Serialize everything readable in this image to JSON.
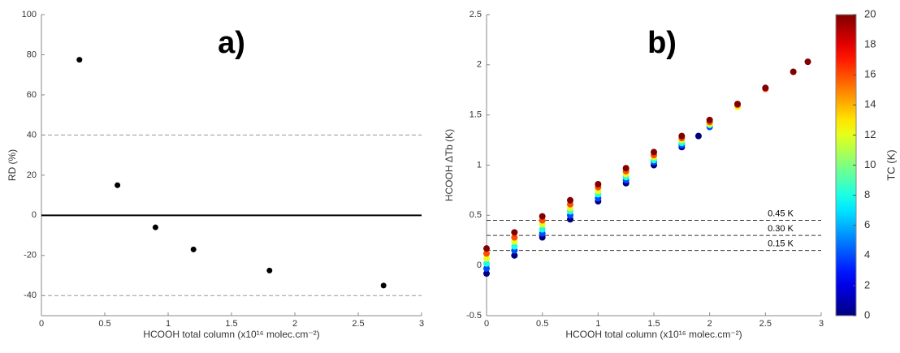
{
  "chart_data": [
    {
      "type": "scatter",
      "title": "a)",
      "ylabel": "RD (%)",
      "xlabel": "HCOOH total column (x10¹⁶ molec.cm⁻²)",
      "x": [
        0.3,
        0.6,
        0.9,
        1.2,
        1.8,
        2.7
      ],
      "y": [
        77.5,
        15,
        -6,
        -17,
        -27.5,
        -35
      ],
      "color": "#000000",
      "xlim": [
        0,
        3
      ],
      "ylim": [
        -50,
        100
      ],
      "xticks": [
        0,
        0.5,
        1,
        1.5,
        2,
        2.5,
        3
      ],
      "yticks": [
        -40,
        -20,
        0,
        20,
        40,
        60,
        80,
        100
      ],
      "hlines": [
        {
          "value": 40,
          "style": "dashed"
        },
        {
          "value": 0,
          "style": "solid"
        },
        {
          "value": -40,
          "style": "dashed"
        }
      ]
    },
    {
      "type": "scatter",
      "title": "b)",
      "ylabel": "HCOOH ΔTb (K)",
      "xlabel": "HCOOH total column (x10¹⁶ molec.cm⁻²)",
      "xlim": [
        0,
        3
      ],
      "ylim": [
        -0.5,
        2.5
      ],
      "xticks": [
        0,
        0.5,
        1,
        1.5,
        2,
        2.5,
        3
      ],
      "yticks": [
        -0.5,
        0,
        0.5,
        1,
        1.5,
        2,
        2.5
      ],
      "series": [
        {
          "c": 0,
          "x": [
            0,
            0.25,
            0.5,
            0.75,
            1,
            1.25,
            1.5,
            1.75,
            1.9
          ],
          "y": [
            -0.08,
            0.1,
            0.28,
            0.46,
            0.64,
            0.82,
            1.0,
            1.18,
            1.29
          ]
        },
        {
          "c": 4,
          "x": [
            0,
            0.25,
            0.5,
            0.75,
            1,
            1.25,
            1.5,
            1.75,
            2
          ],
          "y": [
            -0.03,
            0.15,
            0.32,
            0.5,
            0.67,
            0.85,
            1.03,
            1.2,
            1.38
          ]
        },
        {
          "c": 8,
          "x": [
            0,
            0.25,
            0.5,
            0.75,
            1,
            1.25,
            1.5,
            1.75,
            2
          ],
          "y": [
            0.02,
            0.19,
            0.36,
            0.54,
            0.71,
            0.88,
            1.05,
            1.22,
            1.4
          ]
        },
        {
          "c": 12,
          "x": [
            0,
            0.25,
            0.5,
            0.75,
            1,
            1.25,
            1.5,
            1.75,
            2,
            2.25
          ],
          "y": [
            0.07,
            0.24,
            0.41,
            0.57,
            0.74,
            0.91,
            1.08,
            1.25,
            1.41,
            1.58
          ]
        },
        {
          "c": 16,
          "x": [
            0,
            0.25,
            0.5,
            0.75,
            1,
            1.25,
            1.5,
            1.75,
            2,
            2.25,
            2.5
          ],
          "y": [
            0.12,
            0.28,
            0.45,
            0.61,
            0.78,
            0.94,
            1.1,
            1.27,
            1.43,
            1.6,
            1.76
          ]
        },
        {
          "c": 20,
          "x": [
            0,
            0.25,
            0.5,
            0.75,
            1,
            1.25,
            1.5,
            1.75,
            2,
            2.25,
            2.5,
            2.75,
            2.88
          ],
          "y": [
            0.17,
            0.33,
            0.49,
            0.65,
            0.81,
            0.97,
            1.13,
            1.29,
            1.45,
            1.61,
            1.77,
            1.93,
            2.03
          ]
        }
      ],
      "hlines": [
        {
          "value": 0.45,
          "label": "0.45 K",
          "style": "dashed"
        },
        {
          "value": 0.3,
          "label": "0.30 K",
          "style": "dashed"
        },
        {
          "value": 0.15,
          "label": "0.15 K",
          "style": "dashed"
        }
      ],
      "colorbar": {
        "label": "TC (K)",
        "lim": [
          0,
          20
        ],
        "ticks": [
          0,
          2,
          4,
          6,
          8,
          10,
          12,
          14,
          16,
          18,
          20
        ],
        "colormap": "jet"
      }
    }
  ]
}
